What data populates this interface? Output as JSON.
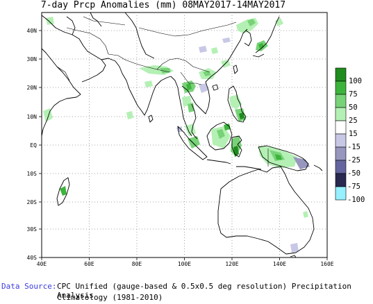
{
  "title": "7-day Prcp Anomalies (mm) 08MAY2017-14MAY2017",
  "footer": {
    "source_label": "Data Source:",
    "source_text": "CPC Unified (gauge-based & 0.5x0.5 deg resolution) Precipitation Analysis",
    "climatology": "Climatology (1981-2010)"
  },
  "axes": {
    "lon_labels": [
      "40E",
      "60E",
      "80E",
      "100E",
      "120E",
      "140E",
      "160E"
    ],
    "lat_labels": [
      "40N",
      "30N",
      "20N",
      "10N",
      "EQ",
      "10S",
      "20S",
      "30S",
      "40S"
    ]
  },
  "legend": {
    "labels": [
      "100",
      "75",
      "50",
      "25",
      "15",
      "-15",
      "-25",
      "-50",
      "-75",
      "-100"
    ],
    "colors": [
      "#1e8c1e",
      "#3cb43c",
      "#78d278",
      "#b4f0b4",
      "#ffffff",
      "#c8c8e6",
      "#9696be",
      "#6464a0",
      "#282850",
      "#96f0ff"
    ]
  }
}
